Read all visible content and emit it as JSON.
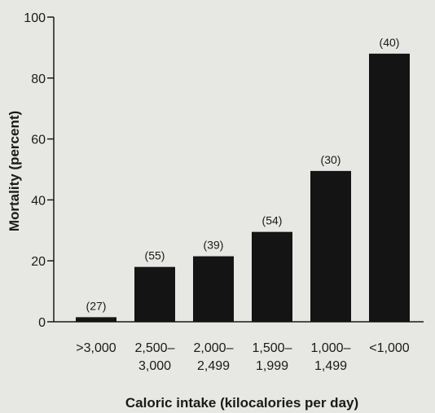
{
  "chart_data": {
    "type": "bar",
    "title": "",
    "xlabel": "Caloric intake (kilocalories per day)",
    "ylabel": "Mortality (percent)",
    "ylim": [
      0,
      100
    ],
    "yticks": [
      "0",
      "20",
      "40",
      "60",
      "80",
      "100"
    ],
    "grid": false,
    "bar_color": "#141414",
    "categories": [
      [
        ">3,000"
      ],
      [
        "2,500–",
        "3,000"
      ],
      [
        "2,000–",
        "2,499"
      ],
      [
        "1,500–",
        "1,999"
      ],
      [
        "1,000–",
        "1,499"
      ],
      [
        "<1,000"
      ]
    ],
    "values": [
      1.5,
      18,
      21.5,
      29.5,
      49.5,
      88
    ],
    "sample_sizes": [
      "(27)",
      "(55)",
      "(39)",
      "(54)",
      "(30)",
      "(40)"
    ]
  }
}
